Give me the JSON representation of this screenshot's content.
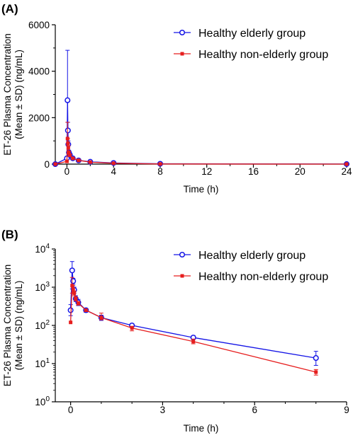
{
  "chart_data": [
    {
      "panel": "(A)",
      "type": "line",
      "xlabel": "Time (h)",
      "ylabel": [
        "ET-26 Plasma Concentration",
        "(Mean ± SD) (ng/mL)"
      ],
      "xlim": [
        -1,
        24
      ],
      "ylim": [
        0,
        6000
      ],
      "xticks": [
        0,
        4,
        8,
        12,
        16,
        20,
        24
      ],
      "yticks": [
        0,
        2000,
        4000,
        6000
      ],
      "yscale": "linear",
      "legend_position": "top-right",
      "series": [
        {
          "name": "Healthy elderly group",
          "color": "#1414e6",
          "marker": "circle",
          "x": [
            -1,
            0,
            0.05,
            0.083,
            0.117,
            0.167,
            0.25,
            0.5,
            1,
            2,
            4,
            8,
            24
          ],
          "y": [
            0,
            250,
            2750,
            1450,
            850,
            500,
            400,
            250,
            160,
            100,
            48,
            14,
            2
          ],
          "sd_upper": [
            0,
            250,
            4900,
            1800,
            1000,
            600,
            480,
            280,
            190,
            110,
            55,
            20,
            2
          ]
        },
        {
          "name": "Healthy non-elderly group",
          "color": "#e61e1e",
          "marker": "square",
          "x": [
            -1,
            0,
            0.05,
            0.083,
            0.117,
            0.167,
            0.25,
            0.5,
            1,
            2,
            4,
            8,
            24
          ],
          "y": [
            0,
            120,
            1100,
            900,
            700,
            500,
            380,
            250,
            160,
            85,
            38,
            6,
            1
          ],
          "sd_upper": [
            0,
            120,
            1800,
            1100,
            800,
            560,
            420,
            270,
            200,
            95,
            45,
            7,
            1
          ]
        }
      ]
    },
    {
      "panel": "(B)",
      "type": "line",
      "xlabel": "Time (h)",
      "ylabel": [
        "ET-26 Plasma Concentration",
        "(Mean ± SD) (ng/mL)"
      ],
      "xlim": [
        -0.5,
        9
      ],
      "ylim": [
        1,
        10000
      ],
      "xticks": [
        0,
        3,
        6,
        9
      ],
      "yticks_exp": [
        0,
        1,
        2,
        3,
        4
      ],
      "tick_base": "10",
      "yscale": "log",
      "legend_position": "top-right",
      "series": [
        {
          "name": "Healthy elderly group",
          "color": "#1414e6",
          "marker": "circle",
          "x": [
            0,
            0.05,
            0.083,
            0.117,
            0.167,
            0.25,
            0.5,
            1,
            2,
            4,
            8
          ],
          "y": [
            250,
            2750,
            1450,
            850,
            500,
            400,
            250,
            160,
            100,
            48,
            14
          ],
          "sd_upper": [
            350,
            4700,
            1700,
            1000,
            600,
            480,
            280,
            185,
            110,
            54,
            21
          ],
          "sd_lower": [
            180,
            900,
            1200,
            700,
            420,
            330,
            220,
            135,
            90,
            43,
            9
          ]
        },
        {
          "name": "Healthy non-elderly group",
          "color": "#e61e1e",
          "marker": "square",
          "x": [
            0,
            0.05,
            0.083,
            0.117,
            0.167,
            0.25,
            0.5,
            1,
            2,
            4,
            8
          ],
          "y": [
            120,
            1100,
            900,
            700,
            500,
            380,
            250,
            160,
            85,
            38,
            6
          ],
          "sd_upper": [
            120,
            1800,
            1100,
            800,
            560,
            420,
            270,
            210,
            95,
            44,
            7
          ],
          "sd_lower": [
            120,
            700,
            700,
            600,
            440,
            340,
            230,
            140,
            72,
            33,
            5
          ]
        }
      ]
    }
  ]
}
